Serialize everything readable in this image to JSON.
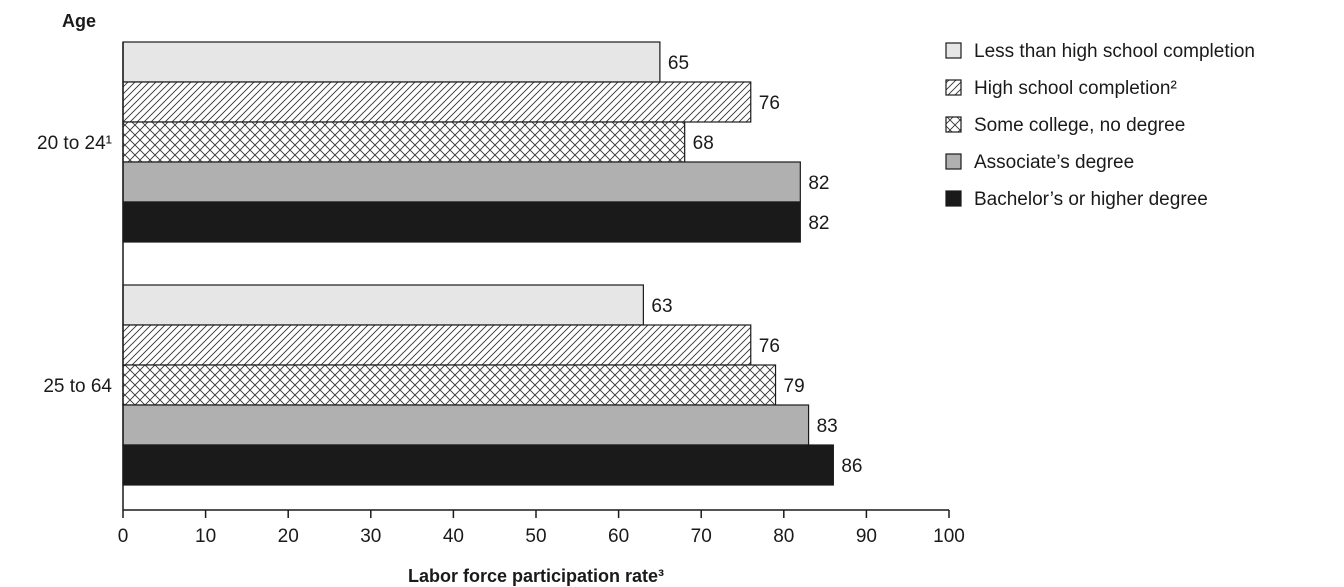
{
  "chart_data": {
    "type": "bar",
    "orientation": "horizontal",
    "title": "",
    "ylabel": "Age",
    "xlabel": "Labor force participation rate³",
    "xlim": [
      0,
      100
    ],
    "xticks": [
      0,
      10,
      20,
      30,
      40,
      50,
      60,
      70,
      80,
      90,
      100
    ],
    "categories": [
      "20 to 24¹",
      "25 to 64"
    ],
    "series": [
      {
        "name": "Less than high school completion",
        "values": [
          65,
          63
        ],
        "color": "#e6e6e6",
        "pattern": "solid"
      },
      {
        "name": "High school completion²",
        "values": [
          76,
          76
        ],
        "color": "#ffffff",
        "pattern": "diagonal"
      },
      {
        "name": "Some college, no degree",
        "values": [
          68,
          79
        ],
        "color": "#ffffff",
        "pattern": "crosshatch"
      },
      {
        "name": "Associate’s degree",
        "values": [
          82,
          83
        ],
        "color": "#b0b0b0",
        "pattern": "solid"
      },
      {
        "name": "Bachelor’s or higher degree",
        "values": [
          82,
          86
        ],
        "color": "#1a1a1a",
        "pattern": "solid"
      }
    ],
    "legend_position": "top-right",
    "grid": false
  }
}
